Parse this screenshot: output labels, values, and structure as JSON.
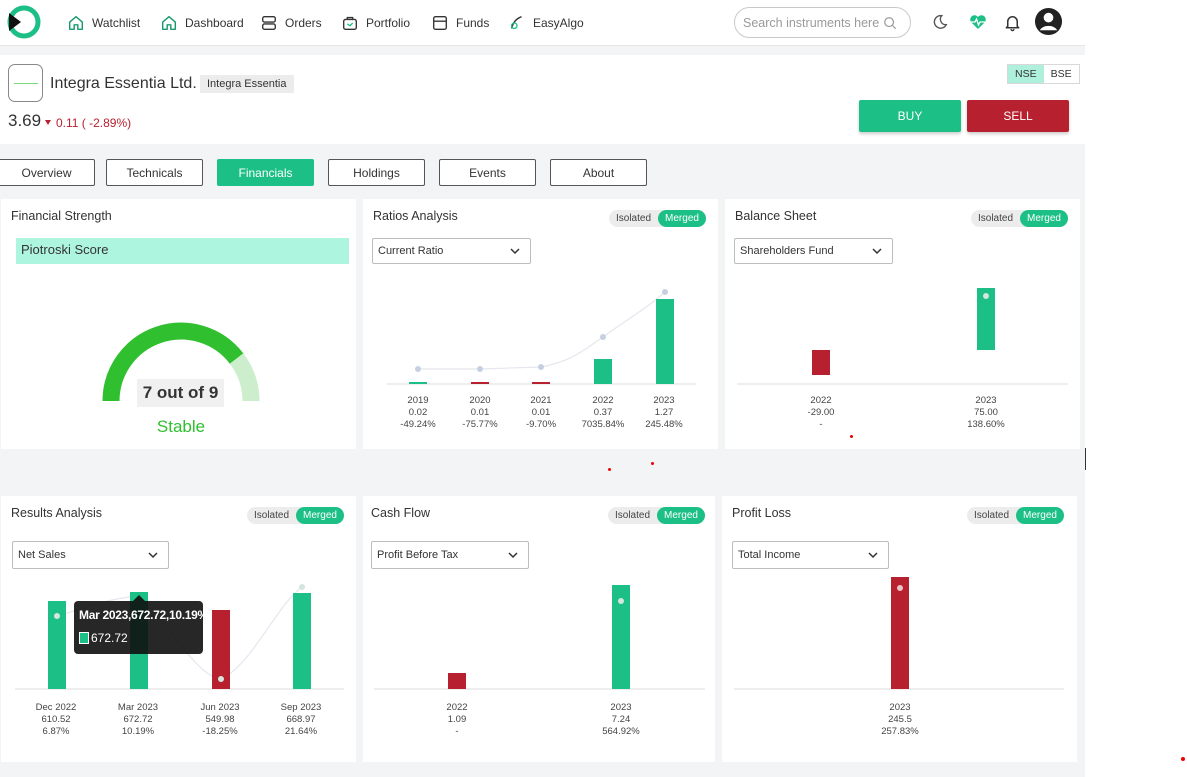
{
  "nav": {
    "items": [
      {
        "label": "Watchlist",
        "icon": "home-icon"
      },
      {
        "label": "Dashboard",
        "icon": "home-icon"
      },
      {
        "label": "Orders",
        "icon": "orders-icon"
      },
      {
        "label": "Portfolio",
        "icon": "briefcase-icon"
      },
      {
        "label": "Funds",
        "icon": "wallet-icon"
      },
      {
        "label": "EasyAlgo",
        "icon": "algo-icon"
      }
    ],
    "search_placeholder": "Search instruments here"
  },
  "stock": {
    "name": "Integra Essentia Ltd.",
    "tag": "Integra Essentia",
    "price": "3.69",
    "change": "0.11 ( -2.89%)",
    "exchanges": [
      "NSE",
      "BSE"
    ],
    "active_exchange": "NSE",
    "buy_label": "BUY",
    "sell_label": "SELL"
  },
  "tabs": [
    "Overview",
    "Technicals",
    "Financials",
    "Holdings",
    "Events",
    "About"
  ],
  "active_tab": "Financials",
  "colors": {
    "green": "#1cbf86",
    "red": "#b7202e",
    "gauge_green": "#2fbf2f",
    "gauge_light": "#cdeecd"
  },
  "segment": {
    "isolated": "Isolated",
    "merged": "Merged"
  },
  "financial_strength": {
    "title": "Financial Strength",
    "label": "Piotroski Score",
    "score_text": "7 out of 9",
    "score": 7,
    "max": 9,
    "status": "Stable"
  },
  "ratios": {
    "title": "Ratios Analysis",
    "dropdown": "Current Ratio",
    "columns": [
      {
        "year": "2019",
        "value": "0.02",
        "pct": "-49.24%"
      },
      {
        "year": "2020",
        "value": "0.01",
        "pct": "-75.77%"
      },
      {
        "year": "2021",
        "value": "0.01",
        "pct": "-9.70%"
      },
      {
        "year": "2022",
        "value": "0.37",
        "pct": "7035.84%"
      },
      {
        "year": "2023",
        "value": "1.27",
        "pct": "245.48%"
      }
    ]
  },
  "balance": {
    "title": "Balance Sheet",
    "dropdown": "Shareholders Fund",
    "columns": [
      {
        "year": "2022",
        "value": "-29.00",
        "pct": "-"
      },
      {
        "year": "2023",
        "value": "75.00",
        "pct": "138.60%"
      }
    ]
  },
  "results": {
    "title": "Results Analysis",
    "dropdown": "Net Sales",
    "columns": [
      {
        "year": "Dec 2022",
        "value": "610.52",
        "pct": "6.87%"
      },
      {
        "year": "Mar 2023",
        "value": "672.72",
        "pct": "10.19%"
      },
      {
        "year": "Jun 2023",
        "value": "549.98",
        "pct": "-18.25%"
      },
      {
        "year": "Sep 2023",
        "value": "668.97",
        "pct": "21.64%"
      }
    ],
    "tooltip_title": "Mar 2023,672.72,10.19%",
    "tooltip_value": "672.72"
  },
  "cashflow": {
    "title": "Cash Flow",
    "dropdown": "Profit Before Tax",
    "columns": [
      {
        "year": "2022",
        "value": "1.09",
        "pct": "-"
      },
      {
        "year": "2023",
        "value": "7.24",
        "pct": "564.92%"
      }
    ]
  },
  "profitloss": {
    "title": "Profit Loss",
    "dropdown": "Total Income",
    "columns": [
      {
        "year": "2023",
        "value": "245.5",
        "pct": "257.83%"
      }
    ]
  },
  "chart_data": [
    {
      "type": "bar",
      "title": "Ratios Analysis",
      "categories": [
        "2019",
        "2020",
        "2021",
        "2022",
        "2023"
      ],
      "values": [
        0.02,
        0.01,
        0.01,
        0.37,
        1.27
      ],
      "change_pct": [
        -49.24,
        -75.77,
        -9.7,
        7035.84,
        245.48
      ]
    },
    {
      "type": "bar",
      "title": "Balance Sheet",
      "categories": [
        "2022",
        "2023"
      ],
      "values": [
        -29.0,
        75.0
      ],
      "change_pct": [
        null,
        138.6
      ]
    },
    {
      "type": "bar",
      "title": "Results Analysis",
      "categories": [
        "Dec 2022",
        "Mar 2023",
        "Jun 2023",
        "Sep 2023"
      ],
      "values": [
        610.52,
        672.72,
        549.98,
        668.97
      ],
      "change_pct": [
        6.87,
        10.19,
        -18.25,
        21.64
      ]
    },
    {
      "type": "bar",
      "title": "Cash Flow",
      "categories": [
        "2022",
        "2023"
      ],
      "values": [
        1.09,
        7.24
      ],
      "change_pct": [
        null,
        564.92
      ]
    },
    {
      "type": "bar",
      "title": "Profit Loss",
      "categories": [
        "2023"
      ],
      "values": [
        245.5
      ],
      "change_pct": [
        257.83
      ]
    }
  ]
}
